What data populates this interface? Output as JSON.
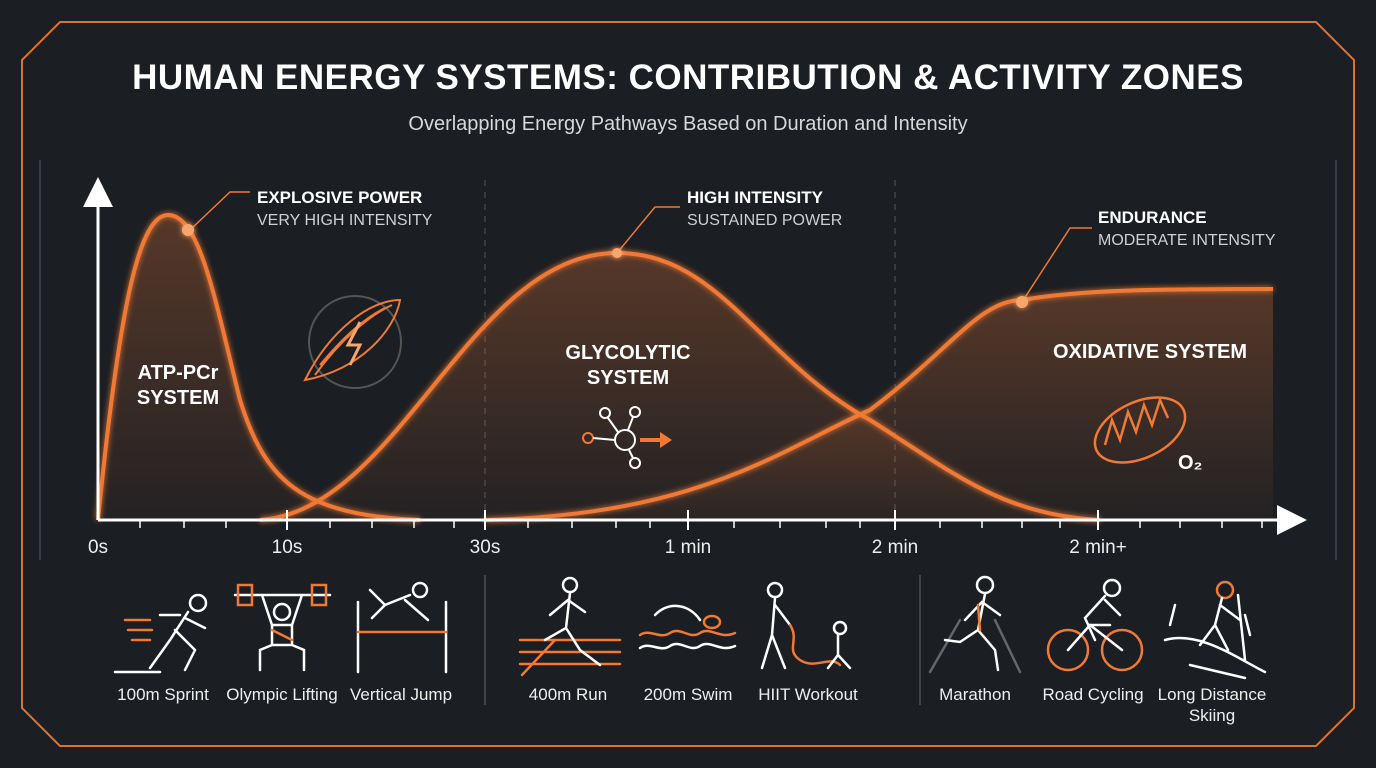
{
  "header": {
    "title": "HUMAN ENERGY SYSTEMS: CONTRIBUTION & ACTIVITY ZONES",
    "subtitle": "Overlapping Energy Pathways Based on Duration and Intensity"
  },
  "colors": {
    "accent": "#f07a35",
    "background": "#1b1e23",
    "text": "#ffffff"
  },
  "systems": [
    {
      "name_line1": "ATP-PCr",
      "name_line2": "SYSTEM",
      "annotation_title": "EXPLOSIVE POWER",
      "annotation_sub": "VERY HIGH INTENSITY",
      "icon": "muscle-lightning-icon"
    },
    {
      "name_line1": "GLYCOLYTIC",
      "name_line2": "SYSTEM",
      "annotation_title": "HIGH INTENSITY",
      "annotation_sub": "SUSTAINED POWER",
      "icon": "molecule-arrow-icon"
    },
    {
      "name_line1": "OXIDATIVE SYSTEM",
      "name_line2": "",
      "annotation_title": "ENDURANCE",
      "annotation_sub": "MODERATE INTENSITY",
      "icon": "mitochondria-icon",
      "icon_label": "O₂"
    }
  ],
  "time_axis": {
    "ticks": [
      "0s",
      "10s",
      "30s",
      "1 min",
      "2 min",
      "2 min+"
    ]
  },
  "activities": [
    {
      "label": "100m Sprint",
      "icon": "sprinter-icon"
    },
    {
      "label": "Olympic Lifting",
      "icon": "weightlifter-icon"
    },
    {
      "label": "Vertical Jump",
      "icon": "high-jump-icon"
    },
    {
      "label": "400m Run",
      "icon": "runner-track-icon"
    },
    {
      "label": "200m Swim",
      "icon": "swimmer-icon"
    },
    {
      "label": "HIIT Workout",
      "icon": "battle-ropes-icon"
    },
    {
      "label": "Marathon",
      "icon": "marathon-runner-icon"
    },
    {
      "label": "Road Cycling",
      "icon": "cyclist-icon"
    },
    {
      "label": "Long Distance",
      "label2": "Skiing",
      "icon": "skier-icon"
    }
  ]
}
